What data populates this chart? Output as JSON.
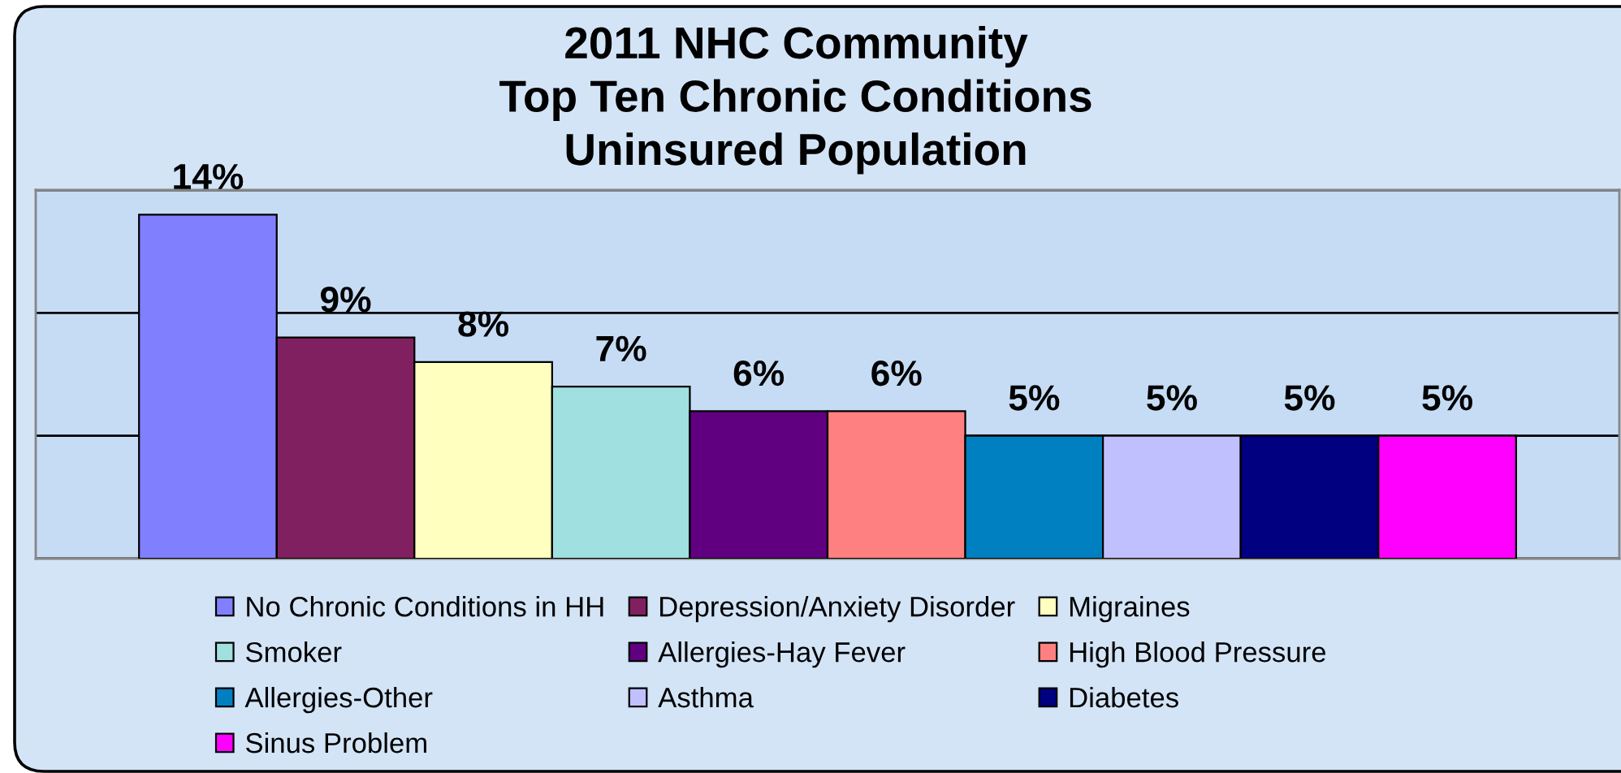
{
  "chart_data": {
    "type": "bar",
    "title": "2011 NHC Community\nTop Ten Chronic Conditions\nUninsured Population",
    "categories": [
      null
    ],
    "series": [
      {
        "name": "No Chronic Conditions in HH",
        "color": "#8080ff",
        "values": [
          14
        ],
        "value_labels": [
          "14%"
        ]
      },
      {
        "name": "Depression/Anxiety Disorder",
        "color": "#802060",
        "values": [
          9
        ],
        "value_labels": [
          "9%"
        ]
      },
      {
        "name": "Migraines",
        "color": "#ffffc0",
        "values": [
          8
        ],
        "value_labels": [
          "8%"
        ]
      },
      {
        "name": "Smoker",
        "color": "#a0e0e0",
        "values": [
          7
        ],
        "value_labels": [
          "7%"
        ]
      },
      {
        "name": "Allergies-Hay Fever",
        "color": "#600080",
        "values": [
          6
        ],
        "value_labels": [
          "6%"
        ]
      },
      {
        "name": "High Blood Pressure",
        "color": "#ff8080",
        "values": [
          6
        ],
        "value_labels": [
          "6%"
        ]
      },
      {
        "name": "Allergies-Other",
        "color": "#0080c0",
        "values": [
          5
        ],
        "value_labels": [
          "5%"
        ]
      },
      {
        "name": "Asthma",
        "color": "#c0c0ff",
        "values": [
          5
        ],
        "value_labels": [
          "5%"
        ]
      },
      {
        "name": "Diabetes",
        "color": "#000080",
        "values": [
          5
        ],
        "value_labels": [
          "5%"
        ]
      },
      {
        "name": "Sinus Problem",
        "color": "#ff00ff",
        "values": [
          5
        ],
        "value_labels": [
          "5%"
        ]
      }
    ],
    "ylim": [
      0,
      15
    ],
    "yticks": [
      {
        "value": 0,
        "label": null
      },
      {
        "value": 5,
        "label": null
      },
      {
        "value": 10,
        "label": null
      },
      {
        "value": 15,
        "label": null
      }
    ],
    "grid": "y",
    "legend": "bottom"
  }
}
